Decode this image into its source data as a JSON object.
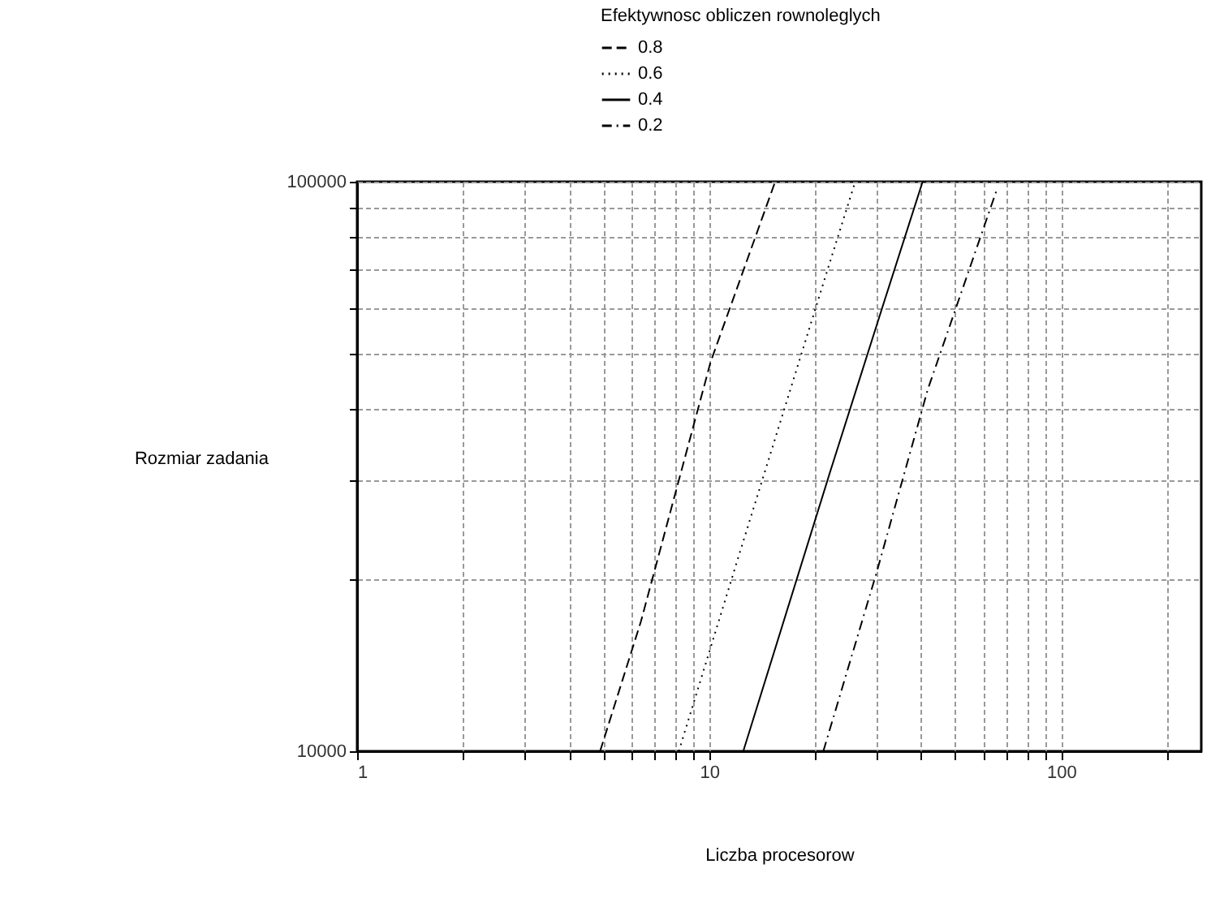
{
  "chart_data": {
    "type": "line",
    "xlabel": "Liczba procesorow",
    "ylabel": "Rozmiar zadania",
    "legend_title": "Efektywnosc obliczen rownoleglych",
    "series": [
      {
        "name": "0.8",
        "color": "#000000",
        "line_style": "dashed",
        "x": [
          4.9,
          6.4,
          10.1,
          15.4
        ],
        "values": [
          10000,
          16900,
          48300,
          100000
        ]
      },
      {
        "name": "0.6",
        "color": "#000000",
        "line_style": "dotted",
        "x": [
          8.2,
          12.1,
          21.9,
          26.0
        ],
        "values": [
          10000,
          21900,
          71400,
          100000
        ]
      },
      {
        "name": "0.4",
        "color": "#000000",
        "line_style": "solid",
        "x": [
          12.5,
          21.9,
          31.0,
          40.4
        ],
        "values": [
          10000,
          30500,
          60000,
          100000
        ]
      },
      {
        "name": "0.2",
        "color": "#000000",
        "line_style": "dashdot",
        "x": [
          21.1,
          29.9,
          41.8,
          65.7
        ],
        "values": [
          10000,
          20600,
          43200,
          97000
        ]
      }
    ],
    "log": "xy",
    "xlim": [
      1,
      250
    ],
    "ylim": [
      10000,
      100000
    ],
    "xticks": [
      1,
      {
        "value": 2,
        "label": null
      },
      {
        "value": 3,
        "label": null
      },
      {
        "value": 4,
        "label": null
      },
      {
        "value": 5,
        "label": null
      },
      {
        "value": 6,
        "label": null
      },
      {
        "value": 7,
        "label": null
      },
      {
        "value": 8,
        "label": null
      },
      {
        "value": 9,
        "label": null
      },
      10,
      {
        "value": 20,
        "label": null
      },
      {
        "value": 30,
        "label": null
      },
      {
        "value": 40,
        "label": null
      },
      {
        "value": 50,
        "label": null
      },
      {
        "value": 60,
        "label": null
      },
      {
        "value": 70,
        "label": null
      },
      {
        "value": 80,
        "label": null
      },
      {
        "value": 90,
        "label": null
      },
      100,
      {
        "value": 200,
        "label": null
      }
    ],
    "yticks": [
      10000,
      {
        "value": 20000,
        "label": null
      },
      {
        "value": 30000,
        "label": null
      },
      {
        "value": 40000,
        "label": null
      },
      {
        "value": 50000,
        "label": null
      },
      {
        "value": 60000,
        "label": null
      },
      {
        "value": 70000,
        "label": null
      },
      {
        "value": 80000,
        "label": null
      },
      {
        "value": 90000,
        "label": null
      },
      100000
    ],
    "grid": true,
    "legend": "top",
    "marker": "none"
  }
}
